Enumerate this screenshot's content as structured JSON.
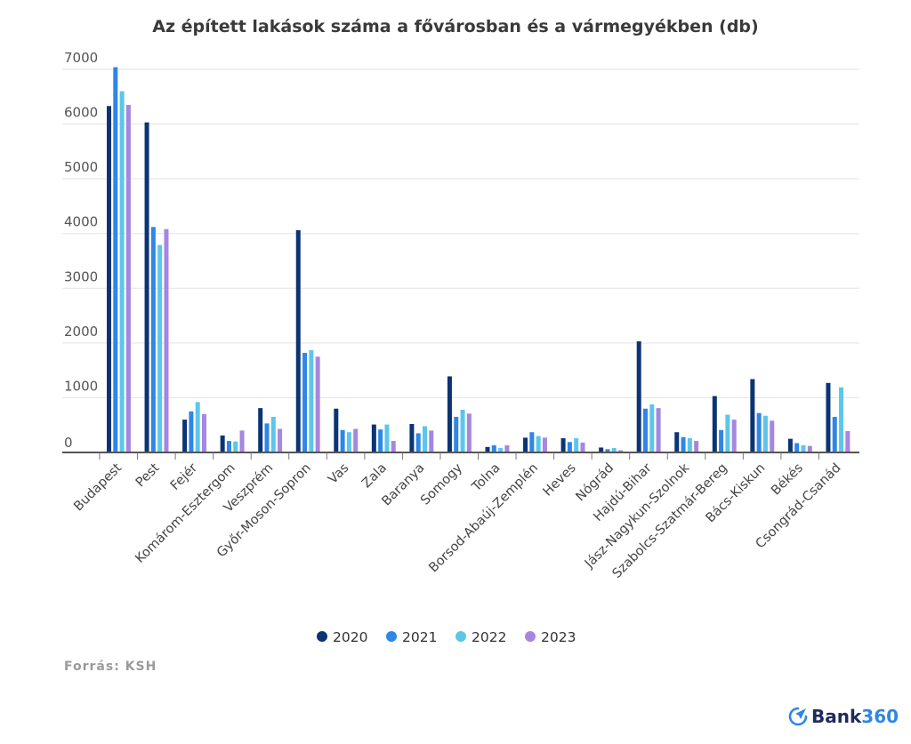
{
  "chart_data": {
    "type": "bar",
    "title": "Az épített lakások száma a fővárosban és a vármegyékben (db)",
    "xlabel": "",
    "ylabel": "",
    "ylim": [
      0,
      7000
    ],
    "yticks": [
      0,
      1000,
      2000,
      3000,
      4000,
      5000,
      6000,
      7000
    ],
    "grid": true,
    "legend_position": "bottom",
    "categories": [
      "Budapest",
      "Pest",
      "Fejér",
      "Komárom-Esztergom",
      "Veszprém",
      "Győr-Moson-Sopron",
      "Vas",
      "Zala",
      "Baranya",
      "Somogy",
      "Tolna",
      "Borsod-Abaúj-Zemplén",
      "Heves",
      "Nógrád",
      "Hajdú-Bihar",
      "Jász-Nagykun-Szolnok",
      "Szabolcs-Szatmár-Bereg",
      "Bács-Kiskun",
      "Békés",
      "Csongrád-Csanád"
    ],
    "series": [
      {
        "name": "2020",
        "color": "#0b3474",
        "values": [
          6330,
          6030,
          600,
          310,
          810,
          4060,
          800,
          510,
          520,
          1390,
          100,
          270,
          260,
          90,
          2030,
          370,
          1030,
          1340,
          250,
          1270
        ]
      },
      {
        "name": "2021",
        "color": "#2f86e6",
        "values": [
          7040,
          4120,
          750,
          210,
          530,
          1820,
          410,
          420,
          350,
          650,
          130,
          370,
          190,
          60,
          800,
          280,
          410,
          720,
          170,
          650
        ]
      },
      {
        "name": "2022",
        "color": "#5cc6ea",
        "values": [
          6600,
          3790,
          920,
          200,
          650,
          1870,
          370,
          510,
          480,
          780,
          80,
          300,
          260,
          80,
          880,
          260,
          690,
          670,
          130,
          1190
        ]
      },
      {
        "name": "2023",
        "color": "#a586e0",
        "values": [
          6350,
          4080,
          700,
          400,
          430,
          1750,
          430,
          210,
          400,
          710,
          130,
          270,
          180,
          40,
          810,
          210,
          600,
          580,
          120,
          390
        ]
      }
    ]
  },
  "footer": {
    "source": "Forrás: KSH",
    "logo_text": "Bank",
    "logo_number": "360"
  }
}
